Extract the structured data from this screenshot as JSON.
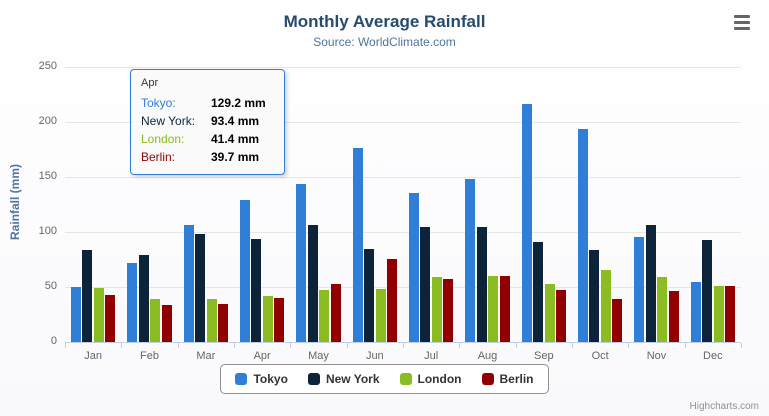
{
  "credits": "Highcharts.com",
  "chart_data": {
    "type": "bar",
    "title": "Monthly Average Rainfall",
    "subtitle": "Source: WorldClimate.com",
    "xlabel": "",
    "ylabel": "Rainfall (mm)",
    "ylim": [
      0,
      250
    ],
    "yticks": [
      0,
      50,
      100,
      150,
      200,
      250
    ],
    "grid": true,
    "legend_position": "bottom",
    "categories": [
      "Jan",
      "Feb",
      "Mar",
      "Apr",
      "May",
      "Jun",
      "Jul",
      "Aug",
      "Sep",
      "Oct",
      "Nov",
      "Dec"
    ],
    "series": [
      {
        "name": "Tokyo",
        "color": "#2f7ed8",
        "values": [
          49.9,
          71.5,
          106.4,
          129.2,
          144.0,
          176.0,
          135.6,
          148.5,
          216.4,
          194.1,
          95.6,
          54.4
        ]
      },
      {
        "name": "New York",
        "color": "#0d233a",
        "values": [
          83.6,
          78.8,
          98.5,
          93.4,
          106.0,
          84.5,
          105.0,
          104.3,
          91.2,
          83.5,
          106.6,
          92.3
        ]
      },
      {
        "name": "London",
        "color": "#8bbc21",
        "values": [
          48.9,
          38.8,
          39.3,
          41.4,
          47.0,
          48.3,
          59.0,
          59.6,
          52.4,
          65.2,
          59.3,
          51.2
        ]
      },
      {
        "name": "Berlin",
        "color": "#910000",
        "values": [
          42.4,
          33.2,
          34.5,
          39.7,
          52.6,
          75.5,
          57.4,
          60.4,
          47.6,
          39.1,
          46.8,
          51.1
        ]
      }
    ]
  },
  "tooltip": {
    "header": "Apr",
    "rows": [
      {
        "name": "Tokyo:",
        "value": "129.2 mm",
        "color": "#2f7ed8"
      },
      {
        "name": "New York:",
        "value": "93.4 mm",
        "color": "#0d233a"
      },
      {
        "name": "London:",
        "value": "41.4 mm",
        "color": "#8bbc21"
      },
      {
        "name": "Berlin:",
        "value": "39.7 mm",
        "color": "#910000"
      }
    ]
  }
}
